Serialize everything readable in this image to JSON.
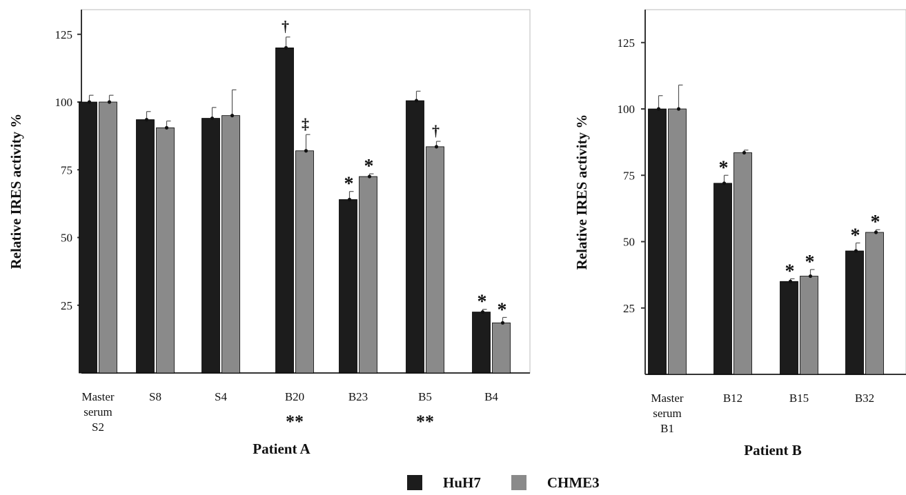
{
  "colors": {
    "huh7": "#1c1c1c",
    "chme3": "#8a8a8a",
    "axis": "#333333",
    "frame": "#bbbbbb"
  },
  "legend": {
    "series": [
      "HuH7",
      "CHME3"
    ]
  },
  "chart_data": [
    {
      "type": "bar",
      "xlabel": "Patient A",
      "ylabel": "Relative IRES activity %",
      "ylim": [
        0,
        135
      ],
      "yticks": [
        "125",
        "100",
        "75",
        "50",
        "25"
      ],
      "ytick_values": [
        125,
        100,
        75,
        50,
        25
      ],
      "categories": [
        [
          "Master",
          "serum",
          "S2"
        ],
        [
          "S8"
        ],
        [
          "S4"
        ],
        [
          "B20"
        ],
        [
          "B23"
        ],
        [
          "B5"
        ],
        [
          "B4"
        ]
      ],
      "category_marks": [
        "",
        "",
        "",
        "**",
        "",
        "**",
        ""
      ],
      "series": [
        {
          "name": "HuH7",
          "values": [
            100,
            93.5,
            94,
            120,
            64,
            100.5,
            22.5
          ],
          "errors": [
            2.5,
            3,
            4,
            4,
            3,
            3.5,
            1
          ],
          "marks": [
            "",
            "",
            "",
            "†",
            "*",
            "",
            "*"
          ]
        },
        {
          "name": "CHME3",
          "values": [
            100,
            90.5,
            95,
            82,
            72.5,
            83.5,
            18.5
          ],
          "errors": [
            2.5,
            2.5,
            9.5,
            6,
            1,
            2,
            2
          ],
          "marks": [
            "",
            "",
            "",
            "‡",
            "*",
            "†",
            "*"
          ]
        }
      ],
      "grid": false
    },
    {
      "type": "bar",
      "xlabel": "Patient B",
      "ylabel": "Relative IRES activity %",
      "ylim": [
        0,
        135
      ],
      "yticks": [
        "125",
        "100",
        "75",
        "50",
        "25"
      ],
      "ytick_values": [
        125,
        100,
        75,
        50,
        25
      ],
      "categories": [
        [
          "Master",
          "serum",
          "B1"
        ],
        [
          "B12"
        ],
        [
          "B15"
        ],
        [
          "B32"
        ]
      ],
      "category_marks": [
        "",
        "",
        "",
        ""
      ],
      "series": [
        {
          "name": "HuH7",
          "values": [
            100,
            72,
            35,
            46.5
          ],
          "errors": [
            5,
            3,
            1,
            3
          ],
          "marks": [
            "",
            "*",
            "*",
            "*"
          ]
        },
        {
          "name": "CHME3",
          "values": [
            100,
            83.5,
            37,
            53.5
          ],
          "errors": [
            9,
            1,
            2.5,
            1
          ],
          "marks": [
            "",
            "",
            "*",
            "*"
          ]
        }
      ],
      "grid": false
    }
  ]
}
